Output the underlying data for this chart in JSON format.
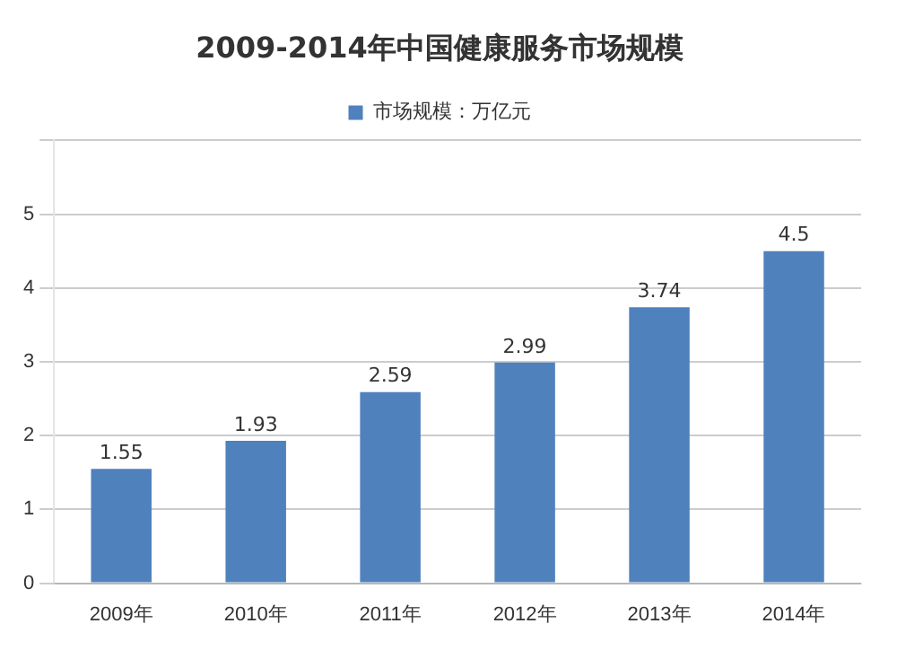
{
  "chart_data": {
    "type": "bar",
    "title": "2009-2014年中国健康服务市场规模",
    "categories": [
      "2009年",
      "2010年",
      "2011年",
      "2012年",
      "2013年",
      "2014年"
    ],
    "series": [
      {
        "name": "市场规模：万亿元",
        "color": "#4f81bd",
        "values": [
          1.55,
          1.93,
          2.59,
          2.99,
          3.74,
          4.5
        ]
      }
    ],
    "ylim": [
      0,
      6
    ],
    "yticks": [
      0,
      1,
      2,
      3,
      4,
      5,
      {
        "value": 6,
        "label": null
      }
    ],
    "grid": "y",
    "legend": "top",
    "data_labels": true
  }
}
